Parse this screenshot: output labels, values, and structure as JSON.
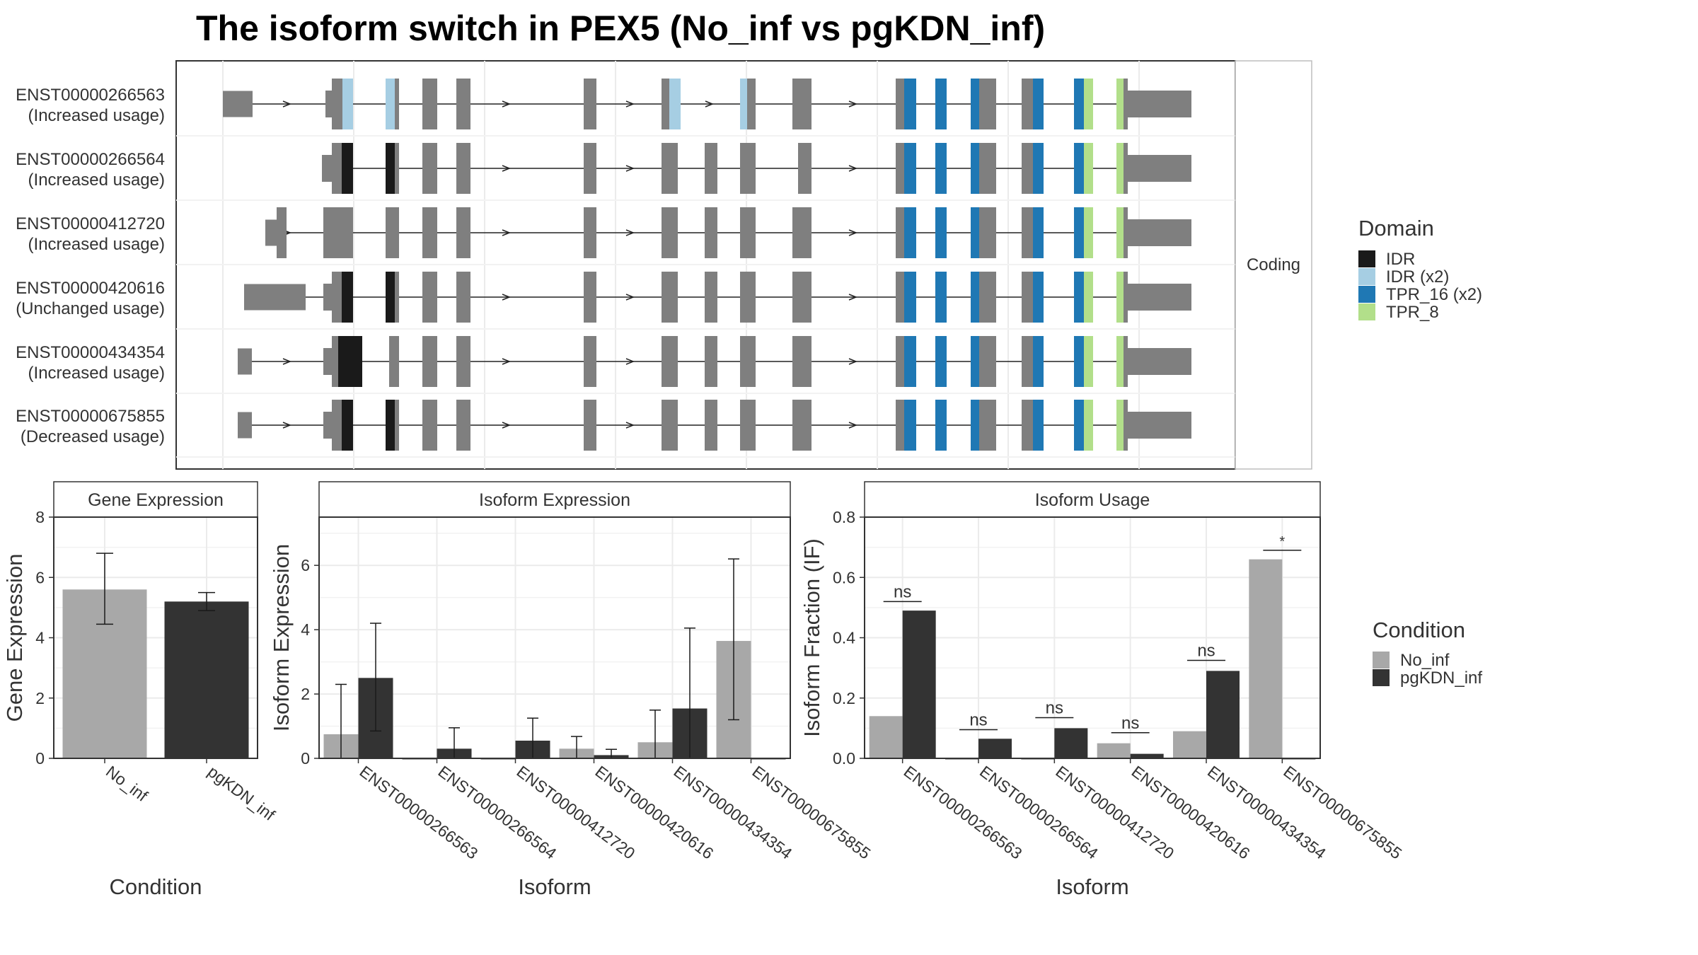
{
  "title": "The isoform switch in PEX5 (No_inf vs pgKDN_inf)",
  "colors": {
    "exon": "#7f7f7f",
    "IDR": "#1a1a1a",
    "IDR (x2)": "#a6cee3",
    "TPR_16 (x2)": "#1f78b4",
    "TPR_8": "#b2df8a",
    "No_inf": "#a8a8a8",
    "pgKDN_inf": "#333333"
  },
  "structure": {
    "strip_label": "Coding",
    "isoforms": [
      {
        "id": "ENST00000266563",
        "usage": "(Increased usage)"
      },
      {
        "id": "ENST00000266564",
        "usage": "(Increased usage)"
      },
      {
        "id": "ENST00000412720",
        "usage": "(Increased usage)"
      },
      {
        "id": "ENST00000420616",
        "usage": "(Unchanged usage)"
      },
      {
        "id": "ENST00000434354",
        "usage": "(Increased usage)"
      },
      {
        "id": "ENST00000675855",
        "usage": "(Decreased usage)"
      }
    ],
    "legend": {
      "title": "Domain",
      "items": [
        "IDR",
        "IDR (x2)",
        "TPR_16 (x2)",
        "TPR_8"
      ]
    }
  },
  "chart_data": [
    {
      "type": "bar",
      "title": "Gene Expression",
      "xlabel": "Condition",
      "ylabel": "Gene Expression",
      "ylim": [
        0,
        8
      ],
      "yticks": [
        0,
        2,
        4,
        6,
        8
      ],
      "categories": [
        "No_inf",
        "pgKDN_inf"
      ],
      "values": [
        5.6,
        5.2
      ],
      "error_low": [
        4.45,
        4.9
      ],
      "error_high": [
        6.8,
        5.5
      ]
    },
    {
      "type": "bar",
      "title": "Isoform Expression",
      "xlabel": "Isoform",
      "ylabel": "Isoform Expression",
      "ylim": [
        0,
        7.5
      ],
      "yticks": [
        0,
        2,
        4,
        6
      ],
      "categories": [
        "ENST00000266563",
        "ENST00000266564",
        "ENST00000412720",
        "ENST00000420616",
        "ENST00000434354",
        "ENST00000675855"
      ],
      "series": [
        {
          "name": "No_inf",
          "values": [
            0.75,
            0.0,
            0.0,
            0.3,
            0.5,
            3.65
          ],
          "error_low": [
            0.0,
            null,
            null,
            0.0,
            0.0,
            1.2
          ],
          "error_high": [
            2.3,
            null,
            null,
            0.68,
            1.5,
            6.2
          ]
        },
        {
          "name": "pgKDN_inf",
          "values": [
            2.5,
            0.3,
            0.55,
            0.1,
            1.55,
            0.0
          ],
          "error_low": [
            0.85,
            0.0,
            0.0,
            0.0,
            0.0,
            null
          ],
          "error_high": [
            4.2,
            0.95,
            1.25,
            0.28,
            4.05,
            null
          ]
        }
      ]
    },
    {
      "type": "bar",
      "title": "Isoform Usage",
      "xlabel": "Isoform",
      "ylabel": "Isoform Fraction (IF)",
      "ylim": [
        0,
        0.8
      ],
      "yticks": [
        "0.0",
        "0.2",
        "0.4",
        "0.6",
        "0.8"
      ],
      "categories": [
        "ENST00000266563",
        "ENST00000266564",
        "ENST00000412720",
        "ENST00000420616",
        "ENST00000434354",
        "ENST00000675855"
      ],
      "series": [
        {
          "name": "No_inf",
          "values": [
            0.14,
            0.0,
            0.0,
            0.05,
            0.09,
            0.66
          ]
        },
        {
          "name": "pgKDN_inf",
          "values": [
            0.49,
            0.065,
            0.1,
            0.015,
            0.29,
            0.0
          ]
        }
      ],
      "significance": [
        {
          "label": "ns",
          "y": 0.52
        },
        {
          "label": "ns",
          "y": 0.095
        },
        {
          "label": "ns",
          "y": 0.135
        },
        {
          "label": "ns",
          "y": 0.085
        },
        {
          "label": "ns",
          "y": 0.325
        },
        {
          "label": "*",
          "y": 0.69
        }
      ]
    }
  ],
  "condition_legend": {
    "title": "Condition",
    "items": [
      "No_inf",
      "pgKDN_inf"
    ]
  }
}
